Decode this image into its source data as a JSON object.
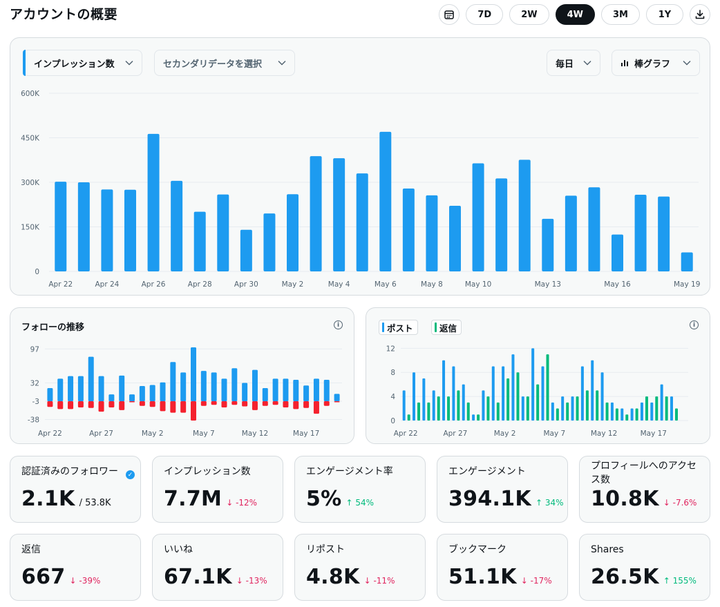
{
  "page": {
    "title": "アカウントの概要"
  },
  "toolbar": {
    "ranges": [
      "7D",
      "2W",
      "4W",
      "3M",
      "1Y"
    ],
    "active_range": "4W"
  },
  "main_chart": {
    "metric_dropdown": "インプレッション数",
    "secondary_dropdown": "セカンダリデータを選択",
    "interval_dropdown": "毎日",
    "type_dropdown": "棒グラフ"
  },
  "follows_chart": {
    "title": "フォローの推移"
  },
  "posts_chart": {
    "legend": [
      "ポスト",
      "返信"
    ]
  },
  "colors": {
    "blue": "#1d9bf0",
    "red": "#f4212e",
    "green": "#00ba7c"
  },
  "stats": [
    {
      "label": "認証済みのフォロワー",
      "value": "2.1K",
      "sub": "/ 53.8K",
      "delta": "",
      "dir": "",
      "verified": true
    },
    {
      "label": "インプレッション数",
      "value": "7.7M",
      "delta": "↓ -12%",
      "dir": "down"
    },
    {
      "label": "エンゲージメント率",
      "value": "5%",
      "delta": "↑ 54%",
      "dir": "up"
    },
    {
      "label": "エンゲージメント",
      "value": "394.1K",
      "delta": "↑ 34%",
      "dir": "up"
    },
    {
      "label": "プロフィールへのアクセス数",
      "value": "10.8K",
      "delta": "↓ -7.6%",
      "dir": "down"
    },
    {
      "label": "返信",
      "value": "667",
      "delta": "↓ -39%",
      "dir": "down"
    },
    {
      "label": "いいね",
      "value": "67.1K",
      "delta": "↓ -13%",
      "dir": "down"
    },
    {
      "label": "リポスト",
      "value": "4.8K",
      "delta": "↓ -11%",
      "dir": "down"
    },
    {
      "label": "ブックマーク",
      "value": "51.1K",
      "delta": "↓ -17%",
      "dir": "down"
    },
    {
      "label": "Shares",
      "value": "26.5K",
      "delta": "↑ 155%",
      "dir": "up"
    }
  ],
  "chart_data": [
    {
      "type": "bar",
      "ylim": [
        0,
        600000
      ],
      "yticks": [
        "0",
        "150K",
        "300K",
        "450K",
        "600K"
      ],
      "ytick_values": [
        0,
        150000,
        300000,
        450000,
        600000
      ],
      "xlabels": [
        {
          "i": 0,
          "t": "Apr 22"
        },
        {
          "i": 2,
          "t": "Apr 24"
        },
        {
          "i": 4,
          "t": "Apr 26"
        },
        {
          "i": 6,
          "t": "Apr 28"
        },
        {
          "i": 8,
          "t": "Apr 30"
        },
        {
          "i": 10,
          "t": "May 2"
        },
        {
          "i": 12,
          "t": "May 4"
        },
        {
          "i": 14,
          "t": "May 6"
        },
        {
          "i": 16,
          "t": "May 8"
        },
        {
          "i": 18,
          "t": "May 10"
        },
        {
          "i": 21,
          "t": "May 13"
        },
        {
          "i": 24,
          "t": "May 16"
        },
        {
          "i": 27,
          "t": "May 19"
        }
      ],
      "values": [
        302000,
        300000,
        276000,
        275000,
        463000,
        305000,
        201000,
        259000,
        140000,
        195000,
        260000,
        388000,
        381000,
        330000,
        470000,
        279000,
        256000,
        221000,
        364000,
        313000,
        376000,
        177000,
        255000,
        283000,
        124000,
        258000,
        252000,
        64000
      ]
    },
    {
      "type": "bar",
      "yticks": [
        "97",
        "32",
        "-3",
        "-38"
      ],
      "ytick_values": [
        97,
        32,
        -3,
        -38
      ],
      "ylim": [
        -44,
        104
      ],
      "xlabels": [
        {
          "i": 0,
          "t": "Apr 22"
        },
        {
          "i": 5,
          "t": "Apr 27"
        },
        {
          "i": 10,
          "t": "May 2"
        },
        {
          "i": 15,
          "t": "May 7"
        },
        {
          "i": 20,
          "t": "May 12"
        },
        {
          "i": 25,
          "t": "May 17"
        }
      ],
      "series": [
        {
          "values": [
            22,
            40,
            45,
            45,
            82,
            45,
            10,
            46,
            10,
            26,
            28,
            33,
            72,
            52,
            100,
            55,
            52,
            40,
            60,
            32,
            57,
            22,
            40,
            40,
            38,
            27,
            40,
            38,
            11
          ]
        },
        {
          "values": [
            -14,
            -18,
            -18,
            -15,
            -16,
            -23,
            -15,
            -20,
            -5,
            -12,
            -14,
            -22,
            -25,
            -25,
            -40,
            -12,
            -10,
            -15,
            -10,
            -13,
            -20,
            -12,
            -10,
            -15,
            -18,
            -16,
            -27,
            -12,
            -5
          ]
        }
      ]
    },
    {
      "type": "bar",
      "yticks": [
        "0",
        "4",
        "8",
        "12"
      ],
      "ytick_values": [
        0,
        4,
        8,
        12
      ],
      "ylim": [
        0,
        12.5
      ],
      "xlabels": [
        {
          "i": 0,
          "t": "Apr 22"
        },
        {
          "i": 5,
          "t": "Apr 27"
        },
        {
          "i": 10,
          "t": "May 2"
        },
        {
          "i": 15,
          "t": "May 7"
        },
        {
          "i": 20,
          "t": "May 12"
        },
        {
          "i": 25,
          "t": "May 17"
        }
      ],
      "series": [
        {
          "name": "ポスト",
          "values": [
            5,
            8,
            7,
            5,
            10,
            9,
            6,
            1,
            5,
            9,
            9,
            11,
            4,
            12,
            9,
            3,
            4,
            4,
            9,
            10,
            8,
            3,
            2,
            2,
            3,
            3,
            6,
            4,
            0
          ]
        },
        {
          "name": "返信",
          "values": [
            1,
            3,
            3,
            4,
            4,
            5,
            3,
            1,
            4,
            3,
            7,
            8,
            4,
            6,
            11,
            2,
            3,
            4,
            5,
            5,
            3,
            2,
            1,
            2,
            4,
            4,
            4,
            2,
            0
          ]
        }
      ]
    }
  ]
}
